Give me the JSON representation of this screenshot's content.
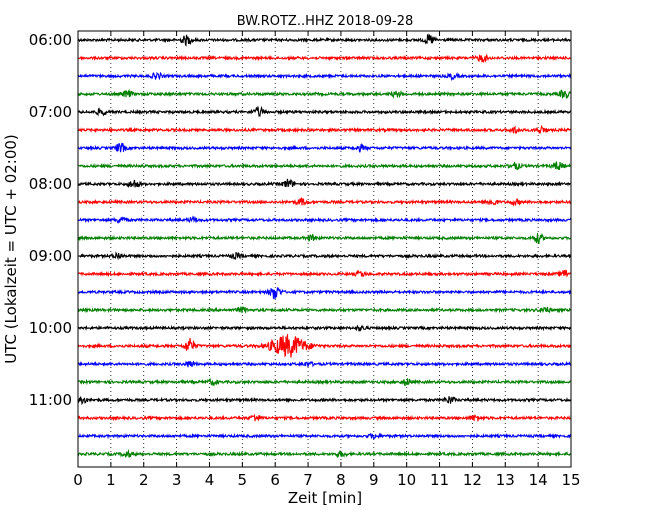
{
  "chart_data": {
    "type": "line",
    "title": "BW.ROTZ..HHZ 2018-09-28",
    "xlabel": "Zeit  [min]",
    "ylabel": "UTC (Lokalzeit = UTC + 02:00)",
    "xlim": [
      0,
      15
    ],
    "x_ticks": [
      "0",
      "1",
      "2",
      "3",
      "4",
      "5",
      "6",
      "7",
      "8",
      "9",
      "10",
      "11",
      "12",
      "13",
      "14",
      "15"
    ],
    "y_tick_labels": [
      "06:00",
      "07:00",
      "08:00",
      "09:00",
      "10:00",
      "11:00"
    ],
    "grid": "vertical-dotted",
    "trace_colors": [
      "#000000",
      "#ff0000",
      "#0000ff",
      "#008000"
    ],
    "trace_interval_minutes": 15,
    "first_trace_utc": "06:00",
    "last_trace_utc": "11:45",
    "traces": [
      {
        "start": "06:00",
        "color": "#000000",
        "events": [
          [
            3.3,
            0.55
          ],
          [
            10.7,
            0.6
          ]
        ]
      },
      {
        "start": "06:15",
        "color": "#ff0000",
        "events": [
          [
            12.3,
            0.45
          ]
        ]
      },
      {
        "start": "06:30",
        "color": "#0000ff",
        "events": [
          [
            2.4,
            0.35
          ],
          [
            11.4,
            0.3
          ]
        ]
      },
      {
        "start": "06:45",
        "color": "#008000",
        "events": [
          [
            1.5,
            0.4
          ],
          [
            9.7,
            0.3
          ],
          [
            14.8,
            0.5
          ]
        ]
      },
      {
        "start": "07:00",
        "color": "#000000",
        "events": [
          [
            0.7,
            0.35
          ],
          [
            5.5,
            0.55
          ]
        ]
      },
      {
        "start": "07:15",
        "color": "#ff0000",
        "events": [
          [
            13.3,
            0.35
          ],
          [
            14.1,
            0.4
          ]
        ]
      },
      {
        "start": "07:30",
        "color": "#0000ff",
        "events": [
          [
            1.3,
            0.55
          ],
          [
            8.6,
            0.35
          ]
        ]
      },
      {
        "start": "07:45",
        "color": "#008000",
        "events": [
          [
            13.3,
            0.4
          ],
          [
            14.6,
            0.5
          ]
        ]
      },
      {
        "start": "08:00",
        "color": "#000000",
        "events": [
          [
            1.7,
            0.5
          ],
          [
            6.4,
            0.55
          ]
        ]
      },
      {
        "start": "08:15",
        "color": "#ff0000",
        "events": [
          [
            6.8,
            0.4
          ],
          [
            12.6,
            0.4
          ],
          [
            13.3,
            0.3
          ]
        ]
      },
      {
        "start": "08:30",
        "color": "#0000ff",
        "events": [
          [
            1.3,
            0.35
          ],
          [
            3.5,
            0.3
          ]
        ]
      },
      {
        "start": "08:45",
        "color": "#008000",
        "events": [
          [
            7.1,
            0.3
          ],
          [
            14.0,
            0.55
          ]
        ]
      },
      {
        "start": "09:00",
        "color": "#000000",
        "events": [
          [
            1.2,
            0.35
          ],
          [
            4.8,
            0.3
          ]
        ]
      },
      {
        "start": "09:15",
        "color": "#ff0000",
        "events": [
          [
            8.6,
            0.3
          ],
          [
            14.8,
            0.45
          ]
        ]
      },
      {
        "start": "09:30",
        "color": "#0000ff",
        "events": [
          [
            6.0,
            0.9
          ]
        ]
      },
      {
        "start": "09:45",
        "color": "#008000",
        "events": [
          [
            5.0,
            0.3
          ],
          [
            14.2,
            0.35
          ]
        ]
      },
      {
        "start": "10:00",
        "color": "#000000",
        "events": [
          [
            8.6,
            0.25
          ]
        ]
      },
      {
        "start": "10:15",
        "color": "#ff0000",
        "events": [
          [
            3.4,
            0.9
          ],
          [
            6.4,
            1.35
          ]
        ]
      },
      {
        "start": "10:30",
        "color": "#0000ff",
        "events": [
          [
            3.4,
            0.35
          ],
          [
            7.0,
            0.25
          ]
        ]
      },
      {
        "start": "10:45",
        "color": "#008000",
        "events": [
          [
            4.1,
            0.3
          ],
          [
            10.0,
            0.4
          ]
        ]
      },
      {
        "start": "11:00",
        "color": "#000000",
        "events": [
          [
            0.1,
            0.5
          ],
          [
            11.3,
            0.45
          ]
        ]
      },
      {
        "start": "11:15",
        "color": "#ff0000",
        "events": [
          [
            5.4,
            0.4
          ],
          [
            12.1,
            0.35
          ]
        ]
      },
      {
        "start": "11:30",
        "color": "#0000ff",
        "events": [
          [
            9.0,
            0.25
          ]
        ]
      },
      {
        "start": "11:45",
        "color": "#008000",
        "events": [
          [
            1.5,
            0.35
          ],
          [
            8.0,
            0.3
          ]
        ]
      }
    ]
  }
}
